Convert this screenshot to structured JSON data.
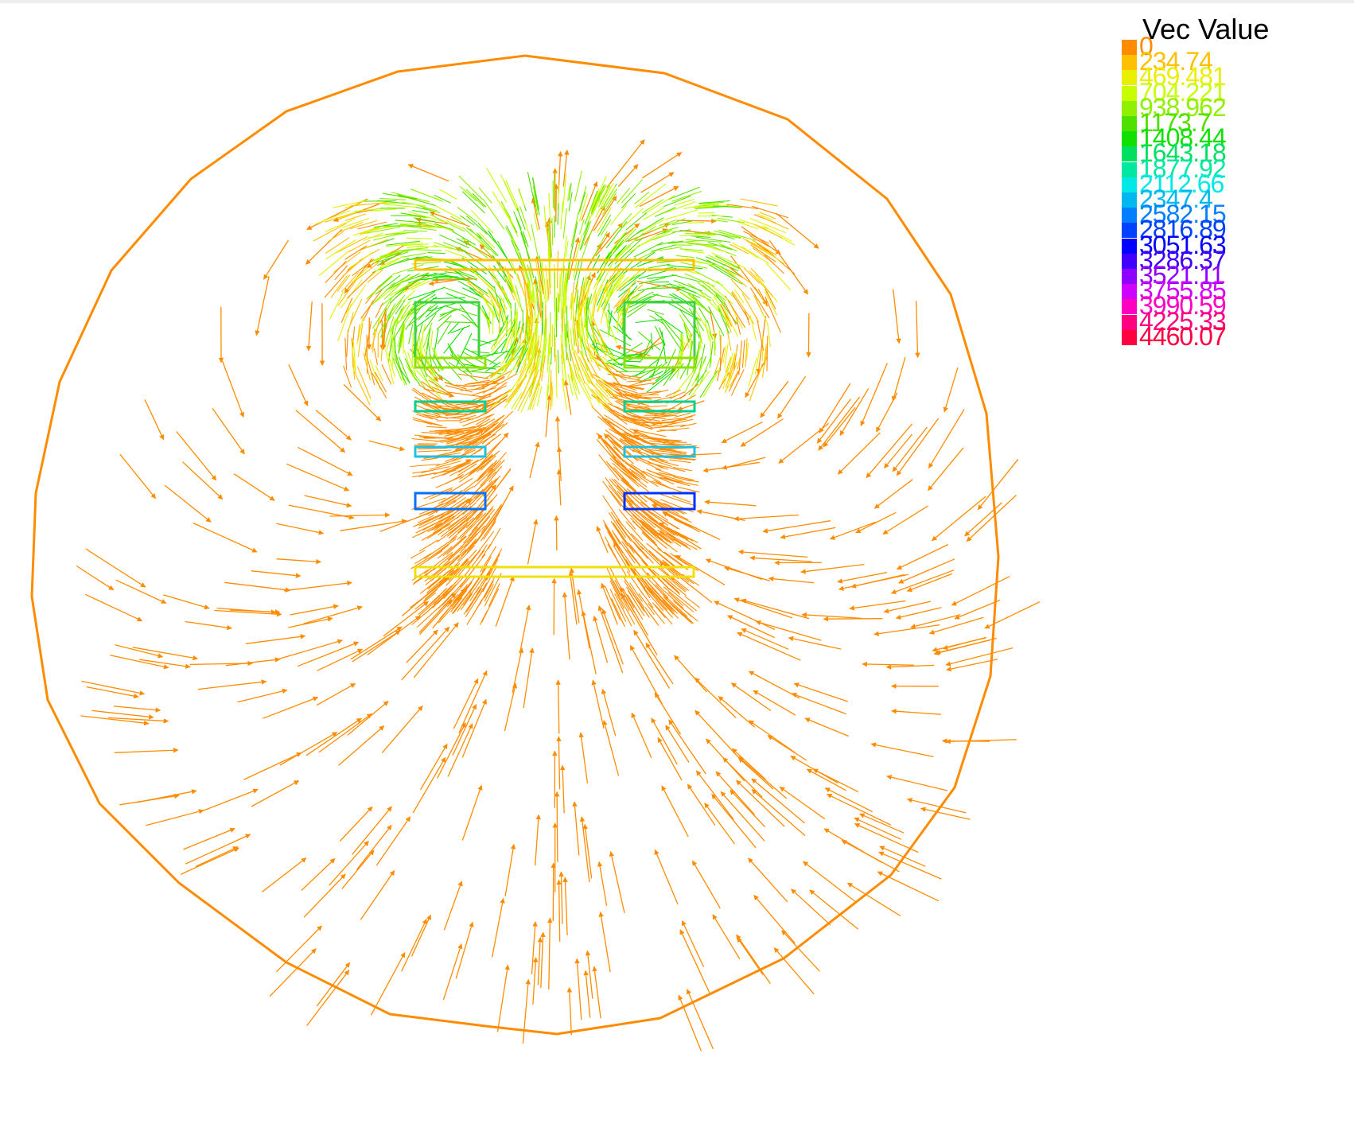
{
  "legend": {
    "title": "Vec Value",
    "items": [
      {
        "label": "0",
        "color": "#ff8c00"
      },
      {
        "label": "234.74",
        "color": "#ffc000"
      },
      {
        "label": "469.481",
        "color": "#e8f000"
      },
      {
        "label": "704.221",
        "color": "#c8ff00"
      },
      {
        "label": "938.962",
        "color": "#90f000"
      },
      {
        "label": "1173.7",
        "color": "#50e000"
      },
      {
        "label": "1408.44",
        "color": "#10e000"
      },
      {
        "label": "1643.18",
        "color": "#00e060"
      },
      {
        "label": "1877.92",
        "color": "#00e8a0"
      },
      {
        "label": "2112.66",
        "color": "#00e8e8"
      },
      {
        "label": "2347.4",
        "color": "#00b8f0"
      },
      {
        "label": "2582.15",
        "color": "#0080ff"
      },
      {
        "label": "2816.89",
        "color": "#0040ff"
      },
      {
        "label": "3051.63",
        "color": "#0000ff"
      },
      {
        "label": "3286.37",
        "color": "#4000ff"
      },
      {
        "label": "3521.11",
        "color": "#9000ff"
      },
      {
        "label": "3755.85",
        "color": "#d000ff"
      },
      {
        "label": "3990.59",
        "color": "#ff00c0"
      },
      {
        "label": "4225.33",
        "color": "#ff0080"
      },
      {
        "label": "4460.07",
        "color": "#ff0040"
      }
    ]
  }
}
